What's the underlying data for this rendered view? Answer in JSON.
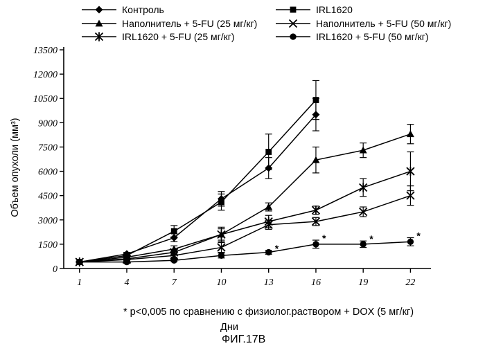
{
  "chart_data": {
    "type": "line",
    "title": "",
    "xlabel": "Дни",
    "ylabel": "Объем опухоли (мм³)",
    "x": [
      1,
      4,
      7,
      10,
      13,
      16,
      19,
      22
    ],
    "x_ticks": [
      "1",
      "4",
      "7",
      "10",
      "13",
      "16",
      "19",
      "22"
    ],
    "ylim": [
      0,
      13500
    ],
    "y_ticks": [
      "0",
      "1500",
      "3000",
      "4500",
      "6000",
      "7500",
      "9000",
      "10500",
      "12000",
      "13500"
    ],
    "grid": false,
    "legend_position": "top",
    "series": [
      {
        "name": "Контроль",
        "marker": "diamond",
        "values": [
          400,
          900,
          1900,
          4300,
          6200,
          9500,
          null,
          null
        ],
        "errors": [
          50,
          100,
          250,
          450,
          650,
          1000,
          null,
          null
        ]
      },
      {
        "name": "IRL1620",
        "marker": "square",
        "values": [
          400,
          800,
          2300,
          4100,
          7200,
          10400,
          null,
          null
        ],
        "errors": [
          50,
          100,
          350,
          500,
          1100,
          1200,
          null,
          null
        ]
      },
      {
        "name": "Наполнитель + 5-FU (25 мг/кг)",
        "marker": "triangle",
        "values": [
          400,
          700,
          1200,
          2100,
          3800,
          6700,
          7300,
          8300
        ],
        "errors": [
          50,
          80,
          200,
          450,
          250,
          800,
          450,
          600
        ]
      },
      {
        "name": "Наполнитель + 5-FU (50 мг/кг)",
        "marker": "x",
        "values": [
          400,
          550,
          800,
          1300,
          2700,
          2900,
          3500,
          4500
        ],
        "errors": [
          50,
          70,
          100,
          300,
          280,
          250,
          300,
          600
        ]
      },
      {
        "name": "IRL1620 + 5-FU (25 мг/кг)",
        "marker": "star",
        "values": [
          400,
          600,
          1000,
          2100,
          2900,
          3600,
          5000,
          6000
        ],
        "errors": [
          50,
          80,
          150,
          350,
          380,
          250,
          550,
          1200
        ]
      },
      {
        "name": "IRL1620 + 5-FU (50 мг/кг)",
        "marker": "circle",
        "values": [
          400,
          400,
          500,
          800,
          1000,
          1500,
          1500,
          1650
        ],
        "errors": [
          50,
          60,
          80,
          150,
          120,
          250,
          200,
          250
        ]
      }
    ],
    "significance": [
      {
        "x": 13,
        "label": "*"
      },
      {
        "x": 16,
        "label": "*"
      },
      {
        "x": 19,
        "label": "*"
      },
      {
        "x": 22,
        "label": "*"
      }
    ],
    "footnote": "* p<0,005 по сравнению с физиолог.раствором + DOX (5 мг/кг)",
    "figure_label": "ФИГ.17B"
  }
}
